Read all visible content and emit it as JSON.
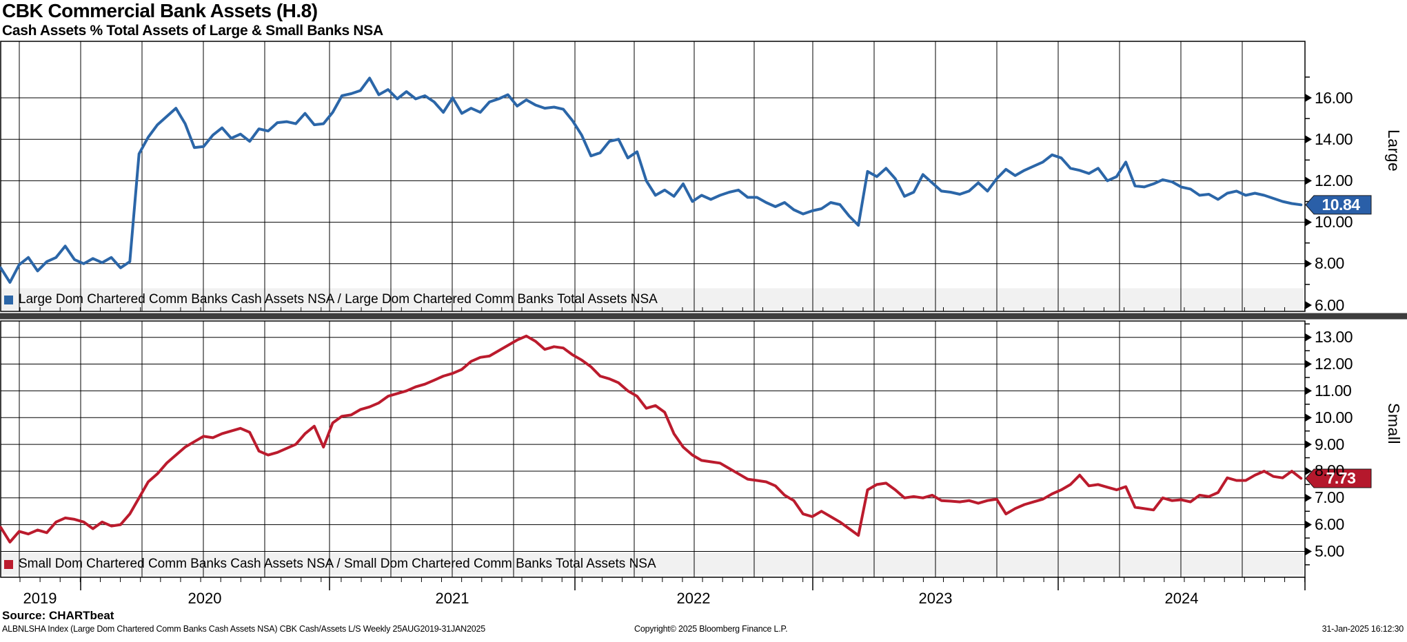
{
  "header": {
    "title": "CBK Commercial Bank Assets (H.8)",
    "subtitle": "Cash Assets % Total Assets of Large & Small Banks NSA"
  },
  "footer": {
    "source": "Source: CHARTbeat",
    "description": "ALBNLSHA Index (Large Dom Chartered Comm Banks Cash Assets NSA) CBK Cash/Assets L/S  Weekly 25AUG2019-31JAN2025",
    "copyright": "Copyright© 2025 Bloomberg Finance L.P.",
    "timestamp": "31-Jan-2025 16:12:30"
  },
  "colors": {
    "large_line": "#2b66a8",
    "large_badge": "#2a5fa8",
    "small_line": "#bb1b2d",
    "small_badge": "#b5182c",
    "grid": "#000000",
    "separator": "#3d3d3d",
    "legend_bg": "#f1f1f1"
  },
  "chart_data": {
    "type": "line",
    "title": "CBK Commercial Bank Assets (H.8)",
    "subtitle": "Cash Assets % Total Assets of Large & Small Banks NSA",
    "frequency": "Weekly",
    "period": "25AUG2019-31JAN2025",
    "x_unit": "weeks since 25AUG2019",
    "xaxis": {
      "years": [
        "2019",
        "2020",
        "2021",
        "2022",
        "2023",
        "2024"
      ],
      "grid": "quarterly"
    },
    "panels": [
      {
        "name": "Large",
        "axis_label": "Large",
        "legend": "Large Dom Chartered Comm Banks Cash Assets NSA / Large Dom Chartered Comm Banks Total Assets NSA",
        "color": "#2b66a8",
        "badge_color": "#2a5fa8",
        "last_value": "10.84",
        "last_value_num": 10.84,
        "ylim": [
          5.7,
          18.6
        ],
        "yticks": [
          6,
          8,
          10,
          12,
          14,
          16
        ],
        "yminor": [
          7,
          9,
          11,
          13,
          15,
          17
        ],
        "series": [
          [
            0,
            7.8
          ],
          [
            2,
            7.1
          ],
          [
            4,
            7.95
          ],
          [
            6,
            8.3
          ],
          [
            8,
            7.65
          ],
          [
            10,
            8.1
          ],
          [
            12,
            8.3
          ],
          [
            14,
            8.85
          ],
          [
            16,
            8.2
          ],
          [
            18,
            8.0
          ],
          [
            20,
            8.25
          ],
          [
            22,
            8.05
          ],
          [
            24,
            8.3
          ],
          [
            26,
            7.8
          ],
          [
            28,
            8.1
          ],
          [
            30,
            13.3
          ],
          [
            32,
            14.1
          ],
          [
            34,
            14.7
          ],
          [
            36,
            15.1
          ],
          [
            38,
            15.5
          ],
          [
            40,
            14.75
          ],
          [
            42,
            13.6
          ],
          [
            44,
            13.65
          ],
          [
            46,
            14.2
          ],
          [
            48,
            14.55
          ],
          [
            50,
            14.05
          ],
          [
            52,
            14.25
          ],
          [
            54,
            13.9
          ],
          [
            56,
            14.5
          ],
          [
            58,
            14.4
          ],
          [
            60,
            14.8
          ],
          [
            62,
            14.85
          ],
          [
            64,
            14.75
          ],
          [
            66,
            15.25
          ],
          [
            68,
            14.7
          ],
          [
            70,
            14.75
          ],
          [
            72,
            15.3
          ],
          [
            74,
            16.1
          ],
          [
            76,
            16.2
          ],
          [
            78,
            16.35
          ],
          [
            80,
            16.95
          ],
          [
            82,
            16.15
          ],
          [
            84,
            16.4
          ],
          [
            86,
            15.95
          ],
          [
            88,
            16.3
          ],
          [
            90,
            15.95
          ],
          [
            92,
            16.1
          ],
          [
            94,
            15.8
          ],
          [
            96,
            15.3
          ],
          [
            98,
            16.0
          ],
          [
            100,
            15.25
          ],
          [
            102,
            15.5
          ],
          [
            104,
            15.3
          ],
          [
            106,
            15.8
          ],
          [
            108,
            15.95
          ],
          [
            110,
            16.15
          ],
          [
            112,
            15.6
          ],
          [
            114,
            15.9
          ],
          [
            116,
            15.65
          ],
          [
            118,
            15.5
          ],
          [
            120,
            15.55
          ],
          [
            122,
            15.45
          ],
          [
            124,
            14.9
          ],
          [
            126,
            14.2
          ],
          [
            128,
            13.2
          ],
          [
            130,
            13.35
          ],
          [
            132,
            13.9
          ],
          [
            134,
            14.0
          ],
          [
            136,
            13.1
          ],
          [
            138,
            13.4
          ],
          [
            140,
            12.0
          ],
          [
            142,
            11.3
          ],
          [
            144,
            11.55
          ],
          [
            146,
            11.25
          ],
          [
            148,
            11.85
          ],
          [
            150,
            11.0
          ],
          [
            152,
            11.3
          ],
          [
            154,
            11.1
          ],
          [
            156,
            11.3
          ],
          [
            158,
            11.45
          ],
          [
            160,
            11.55
          ],
          [
            162,
            11.2
          ],
          [
            164,
            11.2
          ],
          [
            166,
            10.95
          ],
          [
            168,
            10.75
          ],
          [
            170,
            10.95
          ],
          [
            172,
            10.6
          ],
          [
            174,
            10.4
          ],
          [
            176,
            10.55
          ],
          [
            178,
            10.65
          ],
          [
            180,
            10.95
          ],
          [
            182,
            10.85
          ],
          [
            184,
            10.3
          ],
          [
            186,
            9.85
          ],
          [
            188,
            12.45
          ],
          [
            190,
            12.2
          ],
          [
            192,
            12.6
          ],
          [
            194,
            12.1
          ],
          [
            196,
            11.25
          ],
          [
            198,
            11.45
          ],
          [
            200,
            12.3
          ],
          [
            202,
            11.9
          ],
          [
            204,
            11.5
          ],
          [
            206,
            11.45
          ],
          [
            208,
            11.35
          ],
          [
            210,
            11.5
          ],
          [
            212,
            11.9
          ],
          [
            214,
            11.5
          ],
          [
            216,
            12.1
          ],
          [
            218,
            12.55
          ],
          [
            220,
            12.25
          ],
          [
            222,
            12.5
          ],
          [
            224,
            12.7
          ],
          [
            226,
            12.9
          ],
          [
            228,
            13.25
          ],
          [
            230,
            13.1
          ],
          [
            232,
            12.6
          ],
          [
            234,
            12.5
          ],
          [
            236,
            12.35
          ],
          [
            238,
            12.6
          ],
          [
            240,
            12.0
          ],
          [
            242,
            12.2
          ],
          [
            244,
            12.9
          ],
          [
            246,
            11.75
          ],
          [
            248,
            11.7
          ],
          [
            250,
            11.85
          ],
          [
            252,
            12.05
          ],
          [
            254,
            11.95
          ],
          [
            256,
            11.7
          ],
          [
            258,
            11.6
          ],
          [
            260,
            11.3
          ],
          [
            262,
            11.35
          ],
          [
            264,
            11.1
          ],
          [
            266,
            11.4
          ],
          [
            268,
            11.5
          ],
          [
            270,
            11.3
          ],
          [
            272,
            11.4
          ],
          [
            274,
            11.3
          ],
          [
            276,
            11.15
          ],
          [
            278,
            11.0
          ],
          [
            280,
            10.9
          ],
          [
            282,
            10.84
          ]
        ]
      },
      {
        "name": "Small",
        "axis_label": "Small",
        "legend": "Small Dom Chartered Comm Banks Cash Assets NSA / Small Dom Chartered Comm Banks Total Assets NSA",
        "color": "#bb1b2d",
        "badge_color": "#b5182c",
        "last_value": "7.73",
        "last_value_num": 7.73,
        "ylim": [
          4.0,
          13.65
        ],
        "yticks": [
          5,
          6,
          7,
          8,
          9,
          10,
          11,
          12,
          13
        ],
        "yminor": [
          4.5,
          5.5,
          6.5,
          7.5,
          8.5,
          9.5,
          10.5,
          11.5,
          12.5,
          13.5
        ],
        "series": [
          [
            0,
            5.9
          ],
          [
            2,
            5.35
          ],
          [
            4,
            5.75
          ],
          [
            6,
            5.65
          ],
          [
            8,
            5.8
          ],
          [
            10,
            5.7
          ],
          [
            12,
            6.1
          ],
          [
            14,
            6.25
          ],
          [
            16,
            6.2
          ],
          [
            18,
            6.1
          ],
          [
            20,
            5.85
          ],
          [
            22,
            6.1
          ],
          [
            24,
            5.95
          ],
          [
            26,
            6.0
          ],
          [
            28,
            6.4
          ],
          [
            30,
            7.0
          ],
          [
            32,
            7.6
          ],
          [
            34,
            7.9
          ],
          [
            36,
            8.3
          ],
          [
            38,
            8.6
          ],
          [
            40,
            8.9
          ],
          [
            42,
            9.1
          ],
          [
            44,
            9.3
          ],
          [
            46,
            9.25
          ],
          [
            48,
            9.4
          ],
          [
            50,
            9.5
          ],
          [
            52,
            9.6
          ],
          [
            54,
            9.45
          ],
          [
            56,
            8.75
          ],
          [
            58,
            8.6
          ],
          [
            60,
            8.7
          ],
          [
            62,
            8.85
          ],
          [
            64,
            9.0
          ],
          [
            66,
            9.4
          ],
          [
            68,
            9.68
          ],
          [
            70,
            8.9
          ],
          [
            72,
            9.8
          ],
          [
            74,
            10.05
          ],
          [
            76,
            10.1
          ],
          [
            78,
            10.3
          ],
          [
            80,
            10.4
          ],
          [
            82,
            10.55
          ],
          [
            84,
            10.8
          ],
          [
            86,
            10.9
          ],
          [
            88,
            11.0
          ],
          [
            90,
            11.15
          ],
          [
            92,
            11.25
          ],
          [
            94,
            11.4
          ],
          [
            96,
            11.55
          ],
          [
            98,
            11.65
          ],
          [
            100,
            11.8
          ],
          [
            102,
            12.1
          ],
          [
            104,
            12.25
          ],
          [
            106,
            12.3
          ],
          [
            108,
            12.5
          ],
          [
            110,
            12.7
          ],
          [
            112,
            12.9
          ],
          [
            114,
            13.05
          ],
          [
            116,
            12.85
          ],
          [
            118,
            12.55
          ],
          [
            120,
            12.65
          ],
          [
            122,
            12.6
          ],
          [
            124,
            12.35
          ],
          [
            126,
            12.15
          ],
          [
            128,
            11.9
          ],
          [
            130,
            11.55
          ],
          [
            132,
            11.45
          ],
          [
            134,
            11.3
          ],
          [
            136,
            11.0
          ],
          [
            138,
            10.8
          ],
          [
            140,
            10.35
          ],
          [
            142,
            10.45
          ],
          [
            144,
            10.2
          ],
          [
            146,
            9.4
          ],
          [
            148,
            8.9
          ],
          [
            150,
            8.6
          ],
          [
            152,
            8.4
          ],
          [
            154,
            8.35
          ],
          [
            156,
            8.3
          ],
          [
            158,
            8.1
          ],
          [
            160,
            7.9
          ],
          [
            162,
            7.7
          ],
          [
            164,
            7.65
          ],
          [
            166,
            7.6
          ],
          [
            168,
            7.45
          ],
          [
            170,
            7.1
          ],
          [
            172,
            6.9
          ],
          [
            174,
            6.4
          ],
          [
            176,
            6.3
          ],
          [
            178,
            6.5
          ],
          [
            180,
            6.3
          ],
          [
            182,
            6.1
          ],
          [
            184,
            5.85
          ],
          [
            186,
            5.6
          ],
          [
            188,
            7.3
          ],
          [
            190,
            7.5
          ],
          [
            192,
            7.55
          ],
          [
            194,
            7.3
          ],
          [
            196,
            7.0
          ],
          [
            198,
            7.05
          ],
          [
            200,
            7.0
          ],
          [
            202,
            7.1
          ],
          [
            204,
            6.9
          ],
          [
            206,
            6.88
          ],
          [
            208,
            6.85
          ],
          [
            210,
            6.9
          ],
          [
            212,
            6.8
          ],
          [
            214,
            6.9
          ],
          [
            216,
            6.95
          ],
          [
            218,
            6.4
          ],
          [
            220,
            6.6
          ],
          [
            222,
            6.75
          ],
          [
            224,
            6.85
          ],
          [
            226,
            6.95
          ],
          [
            228,
            7.15
          ],
          [
            230,
            7.3
          ],
          [
            232,
            7.5
          ],
          [
            234,
            7.85
          ],
          [
            236,
            7.45
          ],
          [
            238,
            7.5
          ],
          [
            240,
            7.4
          ],
          [
            242,
            7.3
          ],
          [
            244,
            7.42
          ],
          [
            246,
            6.65
          ],
          [
            248,
            6.6
          ],
          [
            250,
            6.55
          ],
          [
            252,
            7.0
          ],
          [
            254,
            6.9
          ],
          [
            256,
            6.93
          ],
          [
            258,
            6.85
          ],
          [
            260,
            7.1
          ],
          [
            262,
            7.05
          ],
          [
            264,
            7.2
          ],
          [
            266,
            7.75
          ],
          [
            268,
            7.65
          ],
          [
            270,
            7.65
          ],
          [
            272,
            7.85
          ],
          [
            274,
            8.0
          ],
          [
            276,
            7.8
          ],
          [
            278,
            7.75
          ],
          [
            280,
            8.0
          ],
          [
            282,
            7.73
          ]
        ]
      }
    ]
  }
}
